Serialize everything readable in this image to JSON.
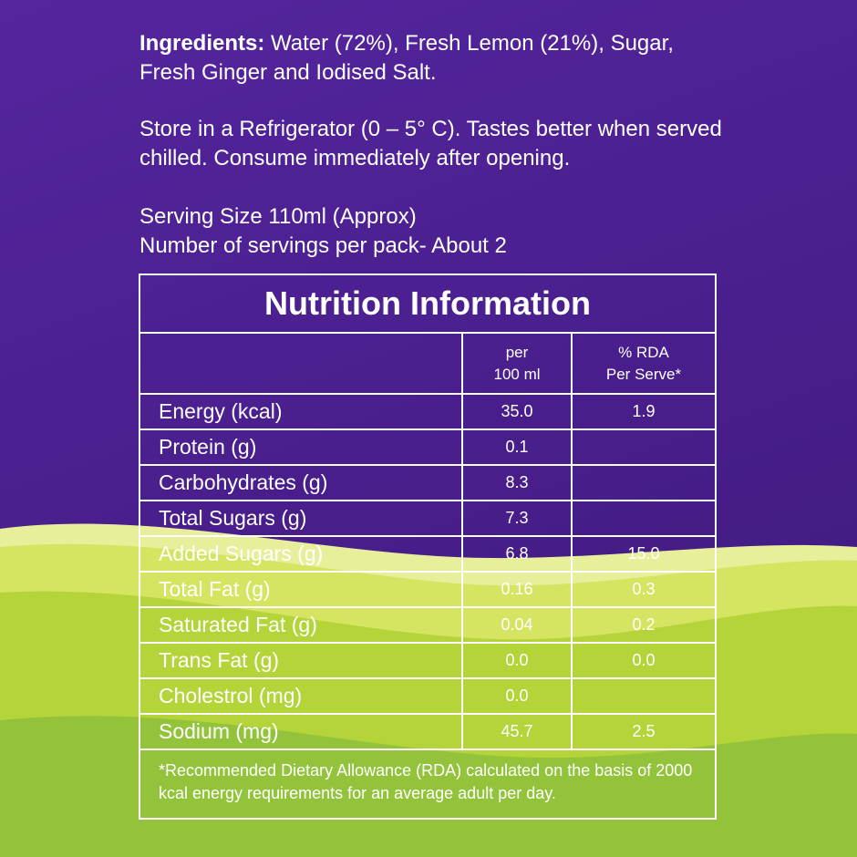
{
  "ingredients": {
    "label": "Ingredients:",
    "text": " Water (72%), Fresh Lemon (21%), Sugar, Fresh Ginger and Iodised Salt."
  },
  "storage": {
    "text": "Store in a Refrigerator (0 – 5° C). Tastes better when served chilled. Consume immediately after opening."
  },
  "serving": {
    "size": "Serving Size 110ml (Approx)",
    "servings": "Number of servings per pack- About 2"
  },
  "nutrition": {
    "title": "Nutrition Information",
    "headers": {
      "col1": "",
      "col2_line1": "per",
      "col2_line2": "100 ml",
      "col3_line1": "% RDA",
      "col3_line2": "Per Serve*"
    },
    "rows": [
      {
        "name": "Energy (kcal)",
        "per100": "35.0",
        "rda": "1.9"
      },
      {
        "name": "Protein (g)",
        "per100": "0.1",
        "rda": ""
      },
      {
        "name": "Carbohydrates (g)",
        "per100": "8.3",
        "rda": ""
      },
      {
        "name": "Total Sugars (g)",
        "per100": "7.3",
        "rda": ""
      },
      {
        "name": "Added Sugars (g)",
        "per100": "6.8",
        "rda": "15.0"
      },
      {
        "name": "Total Fat (g)",
        "per100": "0.16",
        "rda": "0.3"
      },
      {
        "name": "Saturated Fat (g)",
        "per100": "0.04",
        "rda": "0.2"
      },
      {
        "name": "Trans Fat (g)",
        "per100": "0.0",
        "rda": "0.0"
      },
      {
        "name": "Cholestrol (mg)",
        "per100": "0.0",
        "rda": ""
      },
      {
        "name": "Sodium (mg)",
        "per100": "45.7",
        "rda": "2.5"
      }
    ],
    "footnote": "*Recommended Dietary Allowance (RDA) calculated on the basis of 2000 kcal energy requirements for an average adult per day."
  },
  "colors": {
    "background_purple": "#4a1f8e",
    "wave_light": "#dde86a",
    "wave_mid": "#b9d83c",
    "wave_dark": "#8cc03a",
    "text": "#ffffff"
  }
}
